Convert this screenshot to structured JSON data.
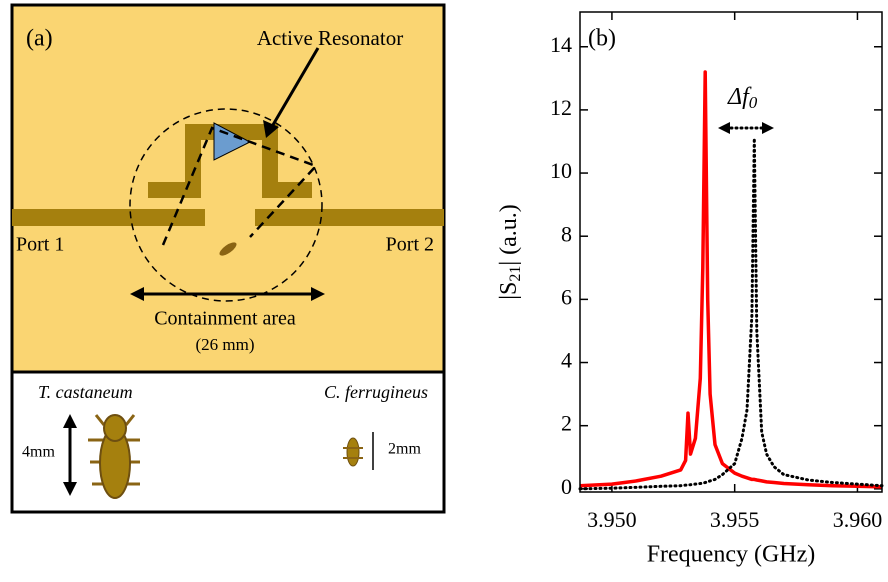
{
  "panel_a": {
    "label": "(a)",
    "resonator_label": "Active Resonator",
    "port1": "Port 1",
    "port2": "Port 2",
    "area_label": "Containment area",
    "area_size": "(26 mm)",
    "insect1": "T. castaneum",
    "insect1_size": "4mm",
    "insect2": "C. ferrugineus",
    "insect2_size": "2mm"
  },
  "chart_data": {
    "type": "line",
    "panel_label": "(b)",
    "x_label": "Frequency (GHz)",
    "y_label": [
      "|S",
      "21",
      "| (a.u.)"
    ],
    "annotation": [
      "Δf",
      "0"
    ],
    "x": [
      3.9487,
      3.95,
      3.951,
      3.952,
      3.9528,
      3.953,
      3.9531,
      3.9532,
      3.9534,
      3.9536,
      3.9537,
      3.9538,
      3.9539,
      3.954,
      3.9542,
      3.9545,
      3.955,
      3.9553,
      3.9555,
      3.9557,
      3.9558,
      3.9559,
      3.9561,
      3.9563,
      3.9566,
      3.957,
      3.958,
      3.959,
      3.96,
      3.961
    ],
    "series": [
      {
        "color": "#ff0000",
        "style": "solid",
        "values": [
          0.1,
          0.15,
          0.25,
          0.4,
          0.6,
          0.9,
          2.4,
          1.1,
          1.6,
          3.5,
          7,
          13.2,
          6,
          3,
          1.4,
          0.8,
          0.5,
          0.4,
          0.35,
          0.3,
          0.3,
          0.28,
          0.25,
          0.22,
          0.2,
          0.17,
          0.13,
          0.1,
          0.08,
          0.06
        ]
      },
      {
        "color": "#000000",
        "style": "dotted",
        "values": [
          0.0,
          0.02,
          0.05,
          0.08,
          0.1,
          0.12,
          0.12,
          0.13,
          0.15,
          0.17,
          0.18,
          0.2,
          0.22,
          0.25,
          0.3,
          0.45,
          0.8,
          1.6,
          2.5,
          5.5,
          11.1,
          5,
          1.8,
          1.1,
          0.7,
          0.45,
          0.28,
          0.2,
          0.15,
          0.1
        ]
      }
    ],
    "xlim": [
      3.9487,
      3.961
    ],
    "ylim": [
      -0.1,
      15.1
    ],
    "xticks": [
      {
        "value": 3.95,
        "label": "3.950"
      },
      {
        "value": 3.955,
        "label": "3.955"
      },
      {
        "value": 3.96,
        "label": "3.960"
      }
    ],
    "yticks": [
      0,
      2,
      4,
      6,
      8,
      10,
      12,
      14
    ]
  }
}
